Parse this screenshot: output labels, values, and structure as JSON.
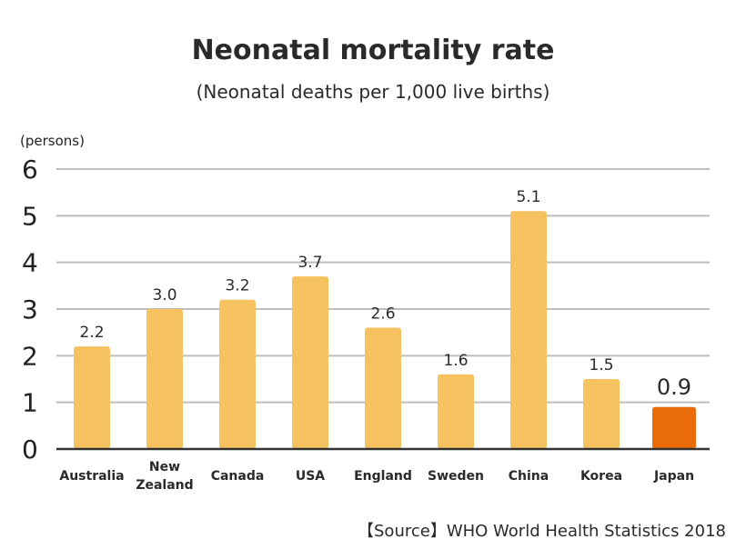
{
  "chart_data": {
    "type": "bar",
    "title": "Neonatal mortality rate",
    "subtitle": "(Neonatal deaths per 1,000 live births)",
    "ylabel": "(persons)",
    "xlabel": "",
    "categories": [
      "Australia",
      "New Zealand",
      "Canada",
      "USA",
      "England",
      "Sweden",
      "China",
      "Korea",
      "Japan"
    ],
    "values": [
      2.2,
      3.0,
      3.2,
      3.7,
      2.6,
      1.6,
      5.1,
      1.5,
      0.9
    ],
    "value_labels": [
      "2.2",
      "3.0",
      "3.2",
      "3.7",
      "2.6",
      "1.6",
      "5.1",
      "1.5",
      "0.9"
    ],
    "ylim": [
      0,
      6
    ],
    "yticks": [
      "0",
      "1",
      "2",
      "3",
      "4",
      "5",
      "6"
    ],
    "grid": true,
    "highlight_category": "Japan",
    "colors": {
      "bar": "#f6c25f",
      "highlight": "#eb6d09",
      "grid": "#bdbdbd",
      "axis": "#333333"
    }
  },
  "source": "【Source】WHO World Health Statistics 2018"
}
